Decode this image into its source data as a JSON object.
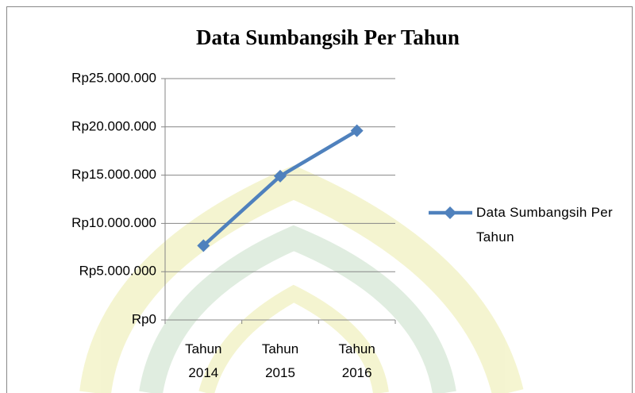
{
  "chart_data": {
    "type": "line",
    "title": "Data Sumbangsih Per Tahun",
    "categories": [
      "Tahun 2014",
      "Tahun 2015",
      "Tahun 2016"
    ],
    "series": [
      {
        "name": "Data Sumbangsih Per Tahun",
        "color": "#4f81bd",
        "values": [
          7700000,
          14900000,
          19600000
        ]
      }
    ],
    "ylim": [
      0,
      25000000
    ],
    "yticks": [
      {
        "value": 0,
        "label": "Rp0"
      },
      {
        "value": 5000000,
        "label": "Rp5.000.000"
      },
      {
        "value": 10000000,
        "label": "Rp10.000.000"
      },
      {
        "value": 15000000,
        "label": "Rp15.000.000"
      },
      {
        "value": 20000000,
        "label": "Rp20.000.000"
      },
      {
        "value": 25000000,
        "label": "Rp25.000.000"
      }
    ],
    "grid": true,
    "legend": "right"
  }
}
